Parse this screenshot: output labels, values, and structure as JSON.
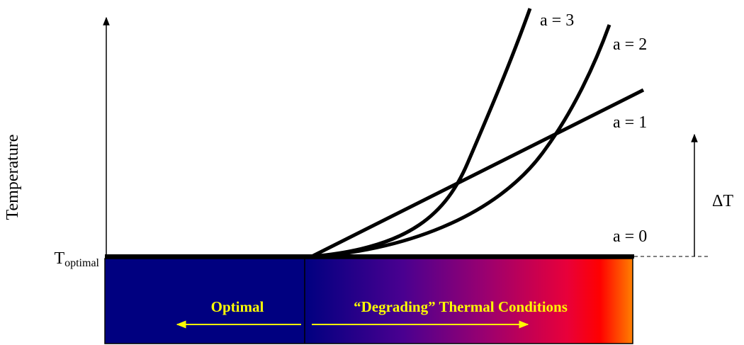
{
  "axis_label": "Temperature",
  "baseline_label": {
    "main": "T",
    "subscript": "optimal"
  },
  "curves": [
    {
      "label": "a = 3"
    },
    {
      "label": "a = 2"
    },
    {
      "label": "a = 1"
    },
    {
      "label": "a = 0"
    }
  ],
  "delta_label": "ΔT",
  "regions": [
    {
      "label": "Optimal"
    },
    {
      "label": "“Degrading” Thermal Conditions"
    }
  ]
}
